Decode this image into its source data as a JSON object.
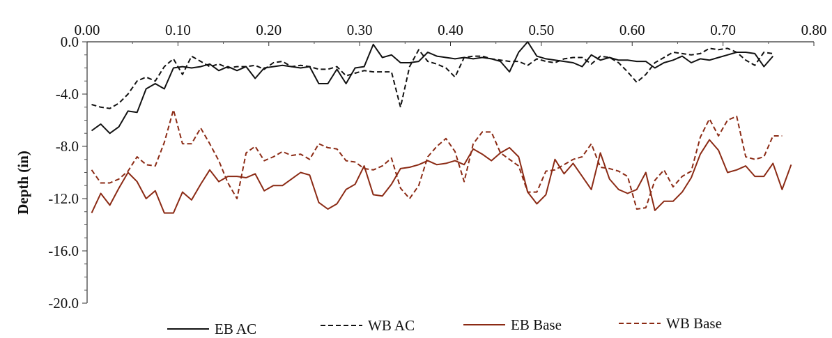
{
  "chart_data": {
    "type": "line",
    "title": "",
    "xlabel": "",
    "ylabel": "Depth (in)",
    "xlim": [
      0.0,
      0.8
    ],
    "ylim": [
      -20.0,
      0.0
    ],
    "x_axis_position": "top",
    "xticks": [
      "0.00",
      "0.10",
      "0.20",
      "0.30",
      "0.40",
      "0.50",
      "0.60",
      "0.70",
      "0.80"
    ],
    "yticks": [
      "0.0",
      "-4.0",
      "-8.0",
      "-12.0",
      "-16.0",
      "-20.0"
    ],
    "grid": false,
    "legend_position": "bottom",
    "series": [
      {
        "name": "EB AC",
        "color": "#111111",
        "dash": "solid",
        "points": [
          [
            0.005,
            -6.8
          ],
          [
            0.015,
            -6.3
          ],
          [
            0.025,
            -7.0
          ],
          [
            0.035,
            -6.5
          ],
          [
            0.045,
            -5.3
          ],
          [
            0.055,
            -5.4
          ],
          [
            0.065,
            -3.6
          ],
          [
            0.075,
            -3.2
          ],
          [
            0.085,
            -3.6
          ],
          [
            0.095,
            -2.0
          ],
          [
            0.105,
            -1.9
          ],
          [
            0.115,
            -2.0
          ],
          [
            0.125,
            -1.9
          ],
          [
            0.135,
            -1.7
          ],
          [
            0.145,
            -2.2
          ],
          [
            0.155,
            -1.9
          ],
          [
            0.165,
            -2.2
          ],
          [
            0.175,
            -1.9
          ],
          [
            0.185,
            -2.8
          ],
          [
            0.195,
            -2.0
          ],
          [
            0.205,
            -1.9
          ],
          [
            0.215,
            -1.8
          ],
          [
            0.225,
            -1.9
          ],
          [
            0.235,
            -2.0
          ],
          [
            0.245,
            -1.9
          ],
          [
            0.255,
            -3.2
          ],
          [
            0.265,
            -3.2
          ],
          [
            0.275,
            -2.1
          ],
          [
            0.285,
            -3.2
          ],
          [
            0.295,
            -2.0
          ],
          [
            0.305,
            -1.9
          ],
          [
            0.315,
            -0.2
          ],
          [
            0.325,
            -1.2
          ],
          [
            0.335,
            -1.0
          ],
          [
            0.345,
            -1.6
          ],
          [
            0.355,
            -1.6
          ],
          [
            0.365,
            -1.5
          ],
          [
            0.375,
            -0.8
          ],
          [
            0.385,
            -1.1
          ],
          [
            0.395,
            -1.2
          ],
          [
            0.405,
            -1.3
          ],
          [
            0.415,
            -1.2
          ],
          [
            0.425,
            -1.3
          ],
          [
            0.435,
            -1.2
          ],
          [
            0.445,
            -1.3
          ],
          [
            0.455,
            -1.5
          ],
          [
            0.465,
            -2.3
          ],
          [
            0.475,
            -0.8
          ],
          [
            0.485,
            0.0
          ],
          [
            0.495,
            -1.1
          ],
          [
            0.505,
            -1.3
          ],
          [
            0.515,
            -1.4
          ],
          [
            0.525,
            -1.5
          ],
          [
            0.535,
            -1.6
          ],
          [
            0.545,
            -1.9
          ],
          [
            0.555,
            -1.0
          ],
          [
            0.565,
            -1.4
          ],
          [
            0.575,
            -1.2
          ],
          [
            0.585,
            -1.4
          ],
          [
            0.595,
            -1.4
          ],
          [
            0.605,
            -1.5
          ],
          [
            0.615,
            -1.5
          ],
          [
            0.625,
            -2.0
          ],
          [
            0.635,
            -1.6
          ],
          [
            0.645,
            -1.4
          ],
          [
            0.655,
            -1.1
          ],
          [
            0.665,
            -1.6
          ],
          [
            0.675,
            -1.3
          ],
          [
            0.685,
            -1.4
          ],
          [
            0.695,
            -1.2
          ],
          [
            0.705,
            -1.0
          ],
          [
            0.715,
            -0.8
          ],
          [
            0.725,
            -0.8
          ],
          [
            0.735,
            -0.9
          ],
          [
            0.745,
            -1.9
          ],
          [
            0.755,
            -1.1
          ]
        ]
      },
      {
        "name": "WB AC",
        "color": "#111111",
        "dash": "dashed",
        "points": [
          [
            0.005,
            -4.8
          ],
          [
            0.015,
            -5.0
          ],
          [
            0.025,
            -5.1
          ],
          [
            0.035,
            -4.7
          ],
          [
            0.045,
            -4.0
          ],
          [
            0.055,
            -3.0
          ],
          [
            0.065,
            -2.7
          ],
          [
            0.075,
            -3.0
          ],
          [
            0.085,
            -1.9
          ],
          [
            0.095,
            -1.3
          ],
          [
            0.105,
            -2.5
          ],
          [
            0.115,
            -1.1
          ],
          [
            0.125,
            -1.5
          ],
          [
            0.135,
            -1.9
          ],
          [
            0.145,
            -1.7
          ],
          [
            0.155,
            -2.0
          ],
          [
            0.165,
            -1.9
          ],
          [
            0.175,
            -1.9
          ],
          [
            0.185,
            -1.8
          ],
          [
            0.195,
            -2.1
          ],
          [
            0.205,
            -1.6
          ],
          [
            0.215,
            -1.5
          ],
          [
            0.225,
            -1.9
          ],
          [
            0.235,
            -1.8
          ],
          [
            0.245,
            -1.9
          ],
          [
            0.255,
            -2.1
          ],
          [
            0.265,
            -2.1
          ],
          [
            0.275,
            -1.9
          ],
          [
            0.285,
            -2.6
          ],
          [
            0.295,
            -2.4
          ],
          [
            0.305,
            -2.2
          ],
          [
            0.315,
            -2.3
          ],
          [
            0.325,
            -2.3
          ],
          [
            0.335,
            -2.3
          ],
          [
            0.345,
            -5.0
          ],
          [
            0.355,
            -1.9
          ],
          [
            0.365,
            -0.6
          ],
          [
            0.375,
            -1.5
          ],
          [
            0.385,
            -1.7
          ],
          [
            0.395,
            -2.0
          ],
          [
            0.405,
            -2.7
          ],
          [
            0.415,
            -1.2
          ],
          [
            0.425,
            -1.1
          ],
          [
            0.435,
            -1.1
          ],
          [
            0.445,
            -1.3
          ],
          [
            0.455,
            -1.4
          ],
          [
            0.465,
            -1.5
          ],
          [
            0.475,
            -1.5
          ],
          [
            0.485,
            -1.8
          ],
          [
            0.495,
            -1.3
          ],
          [
            0.505,
            -1.5
          ],
          [
            0.515,
            -1.6
          ],
          [
            0.525,
            -1.3
          ],
          [
            0.535,
            -1.2
          ],
          [
            0.545,
            -1.2
          ],
          [
            0.555,
            -1.7
          ],
          [
            0.565,
            -1.1
          ],
          [
            0.575,
            -1.2
          ],
          [
            0.585,
            -1.6
          ],
          [
            0.595,
            -2.3
          ],
          [
            0.605,
            -3.1
          ],
          [
            0.615,
            -2.5
          ],
          [
            0.625,
            -1.6
          ],
          [
            0.635,
            -1.2
          ],
          [
            0.645,
            -0.8
          ],
          [
            0.655,
            -0.9
          ],
          [
            0.665,
            -1.0
          ],
          [
            0.675,
            -0.9
          ],
          [
            0.685,
            -0.5
          ],
          [
            0.695,
            -0.6
          ],
          [
            0.705,
            -0.5
          ],
          [
            0.715,
            -0.8
          ],
          [
            0.725,
            -1.4
          ],
          [
            0.735,
            -1.8
          ],
          [
            0.745,
            -0.8
          ],
          [
            0.755,
            -0.9
          ]
        ]
      },
      {
        "name": "EB Base",
        "color": "#8b2a14",
        "dash": "solid",
        "points": [
          [
            0.005,
            -13.1
          ],
          [
            0.015,
            -11.6
          ],
          [
            0.025,
            -12.5
          ],
          [
            0.035,
            -11.2
          ],
          [
            0.045,
            -10.0
          ],
          [
            0.055,
            -10.7
          ],
          [
            0.065,
            -12.0
          ],
          [
            0.075,
            -11.4
          ],
          [
            0.085,
            -13.1
          ],
          [
            0.095,
            -13.1
          ],
          [
            0.105,
            -11.5
          ],
          [
            0.115,
            -12.1
          ],
          [
            0.125,
            -10.9
          ],
          [
            0.135,
            -9.8
          ],
          [
            0.145,
            -10.7
          ],
          [
            0.155,
            -10.3
          ],
          [
            0.165,
            -10.3
          ],
          [
            0.175,
            -10.4
          ],
          [
            0.185,
            -10.1
          ],
          [
            0.195,
            -11.4
          ],
          [
            0.205,
            -11.0
          ],
          [
            0.215,
            -11.0
          ],
          [
            0.225,
            -10.5
          ],
          [
            0.235,
            -10.0
          ],
          [
            0.245,
            -10.2
          ],
          [
            0.255,
            -12.3
          ],
          [
            0.265,
            -12.8
          ],
          [
            0.275,
            -12.4
          ],
          [
            0.285,
            -11.3
          ],
          [
            0.295,
            -10.9
          ],
          [
            0.305,
            -9.5
          ],
          [
            0.315,
            -11.7
          ],
          [
            0.325,
            -11.8
          ],
          [
            0.335,
            -10.9
          ],
          [
            0.345,
            -9.7
          ],
          [
            0.355,
            -9.6
          ],
          [
            0.365,
            -9.4
          ],
          [
            0.375,
            -9.1
          ],
          [
            0.385,
            -9.4
          ],
          [
            0.395,
            -9.3
          ],
          [
            0.405,
            -9.1
          ],
          [
            0.415,
            -9.4
          ],
          [
            0.425,
            -8.2
          ],
          [
            0.435,
            -8.6
          ],
          [
            0.445,
            -9.1
          ],
          [
            0.455,
            -8.5
          ],
          [
            0.465,
            -8.1
          ],
          [
            0.475,
            -8.8
          ],
          [
            0.485,
            -11.5
          ],
          [
            0.495,
            -12.4
          ],
          [
            0.505,
            -11.7
          ],
          [
            0.515,
            -9.0
          ],
          [
            0.525,
            -10.1
          ],
          [
            0.535,
            -9.3
          ],
          [
            0.545,
            -10.3
          ],
          [
            0.555,
            -11.3
          ],
          [
            0.565,
            -8.5
          ],
          [
            0.575,
            -10.5
          ],
          [
            0.585,
            -11.3
          ],
          [
            0.595,
            -11.6
          ],
          [
            0.605,
            -11.3
          ],
          [
            0.615,
            -10.0
          ],
          [
            0.625,
            -12.9
          ],
          [
            0.635,
            -12.2
          ],
          [
            0.645,
            -12.2
          ],
          [
            0.655,
            -11.5
          ],
          [
            0.665,
            -10.4
          ],
          [
            0.675,
            -8.6
          ],
          [
            0.685,
            -7.5
          ],
          [
            0.695,
            -8.3
          ],
          [
            0.705,
            -10.0
          ],
          [
            0.715,
            -9.8
          ],
          [
            0.725,
            -9.5
          ],
          [
            0.735,
            -10.3
          ],
          [
            0.745,
            -10.3
          ],
          [
            0.755,
            -9.3
          ],
          [
            0.765,
            -11.3
          ],
          [
            0.775,
            -9.4
          ]
        ]
      },
      {
        "name": "WB Base",
        "color": "#8b2a14",
        "dash": "dashed",
        "points": [
          [
            0.005,
            -9.8
          ],
          [
            0.015,
            -10.8
          ],
          [
            0.025,
            -10.8
          ],
          [
            0.035,
            -10.5
          ],
          [
            0.045,
            -9.9
          ],
          [
            0.055,
            -8.8
          ],
          [
            0.065,
            -9.4
          ],
          [
            0.075,
            -9.5
          ],
          [
            0.085,
            -7.7
          ],
          [
            0.095,
            -5.2
          ],
          [
            0.105,
            -7.8
          ],
          [
            0.115,
            -7.8
          ],
          [
            0.125,
            -6.6
          ],
          [
            0.135,
            -7.8
          ],
          [
            0.145,
            -9.1
          ],
          [
            0.155,
            -10.8
          ],
          [
            0.165,
            -12.0
          ],
          [
            0.175,
            -8.5
          ],
          [
            0.185,
            -8.0
          ],
          [
            0.195,
            -9.1
          ],
          [
            0.205,
            -8.8
          ],
          [
            0.215,
            -8.4
          ],
          [
            0.225,
            -8.7
          ],
          [
            0.235,
            -8.6
          ],
          [
            0.245,
            -9.0
          ],
          [
            0.255,
            -7.8
          ],
          [
            0.265,
            -8.1
          ],
          [
            0.275,
            -8.2
          ],
          [
            0.285,
            -9.1
          ],
          [
            0.295,
            -9.2
          ],
          [
            0.305,
            -9.7
          ],
          [
            0.315,
            -9.8
          ],
          [
            0.325,
            -9.5
          ],
          [
            0.335,
            -8.9
          ],
          [
            0.345,
            -11.2
          ],
          [
            0.355,
            -12.0
          ],
          [
            0.365,
            -11.0
          ],
          [
            0.375,
            -8.8
          ],
          [
            0.385,
            -8.0
          ],
          [
            0.395,
            -7.4
          ],
          [
            0.405,
            -8.4
          ],
          [
            0.415,
            -10.7
          ],
          [
            0.425,
            -7.8
          ],
          [
            0.435,
            -6.9
          ],
          [
            0.445,
            -6.9
          ],
          [
            0.455,
            -8.5
          ],
          [
            0.465,
            -9.0
          ],
          [
            0.475,
            -9.5
          ],
          [
            0.485,
            -11.5
          ],
          [
            0.495,
            -11.5
          ],
          [
            0.505,
            -9.9
          ],
          [
            0.515,
            -9.8
          ],
          [
            0.525,
            -9.4
          ],
          [
            0.535,
            -9.0
          ],
          [
            0.545,
            -8.8
          ],
          [
            0.555,
            -7.8
          ],
          [
            0.565,
            -9.6
          ],
          [
            0.575,
            -9.7
          ],
          [
            0.585,
            -9.9
          ],
          [
            0.595,
            -10.3
          ],
          [
            0.605,
            -12.8
          ],
          [
            0.615,
            -12.7
          ],
          [
            0.625,
            -10.6
          ],
          [
            0.635,
            -9.8
          ],
          [
            0.645,
            -11.1
          ],
          [
            0.655,
            -10.3
          ],
          [
            0.665,
            -9.9
          ],
          [
            0.675,
            -7.3
          ],
          [
            0.685,
            -5.9
          ],
          [
            0.695,
            -7.2
          ],
          [
            0.705,
            -6.0
          ],
          [
            0.715,
            -5.7
          ],
          [
            0.725,
            -8.8
          ],
          [
            0.735,
            -9.0
          ],
          [
            0.745,
            -8.8
          ],
          [
            0.755,
            -7.2
          ],
          [
            0.765,
            -7.2
          ]
        ]
      }
    ]
  }
}
